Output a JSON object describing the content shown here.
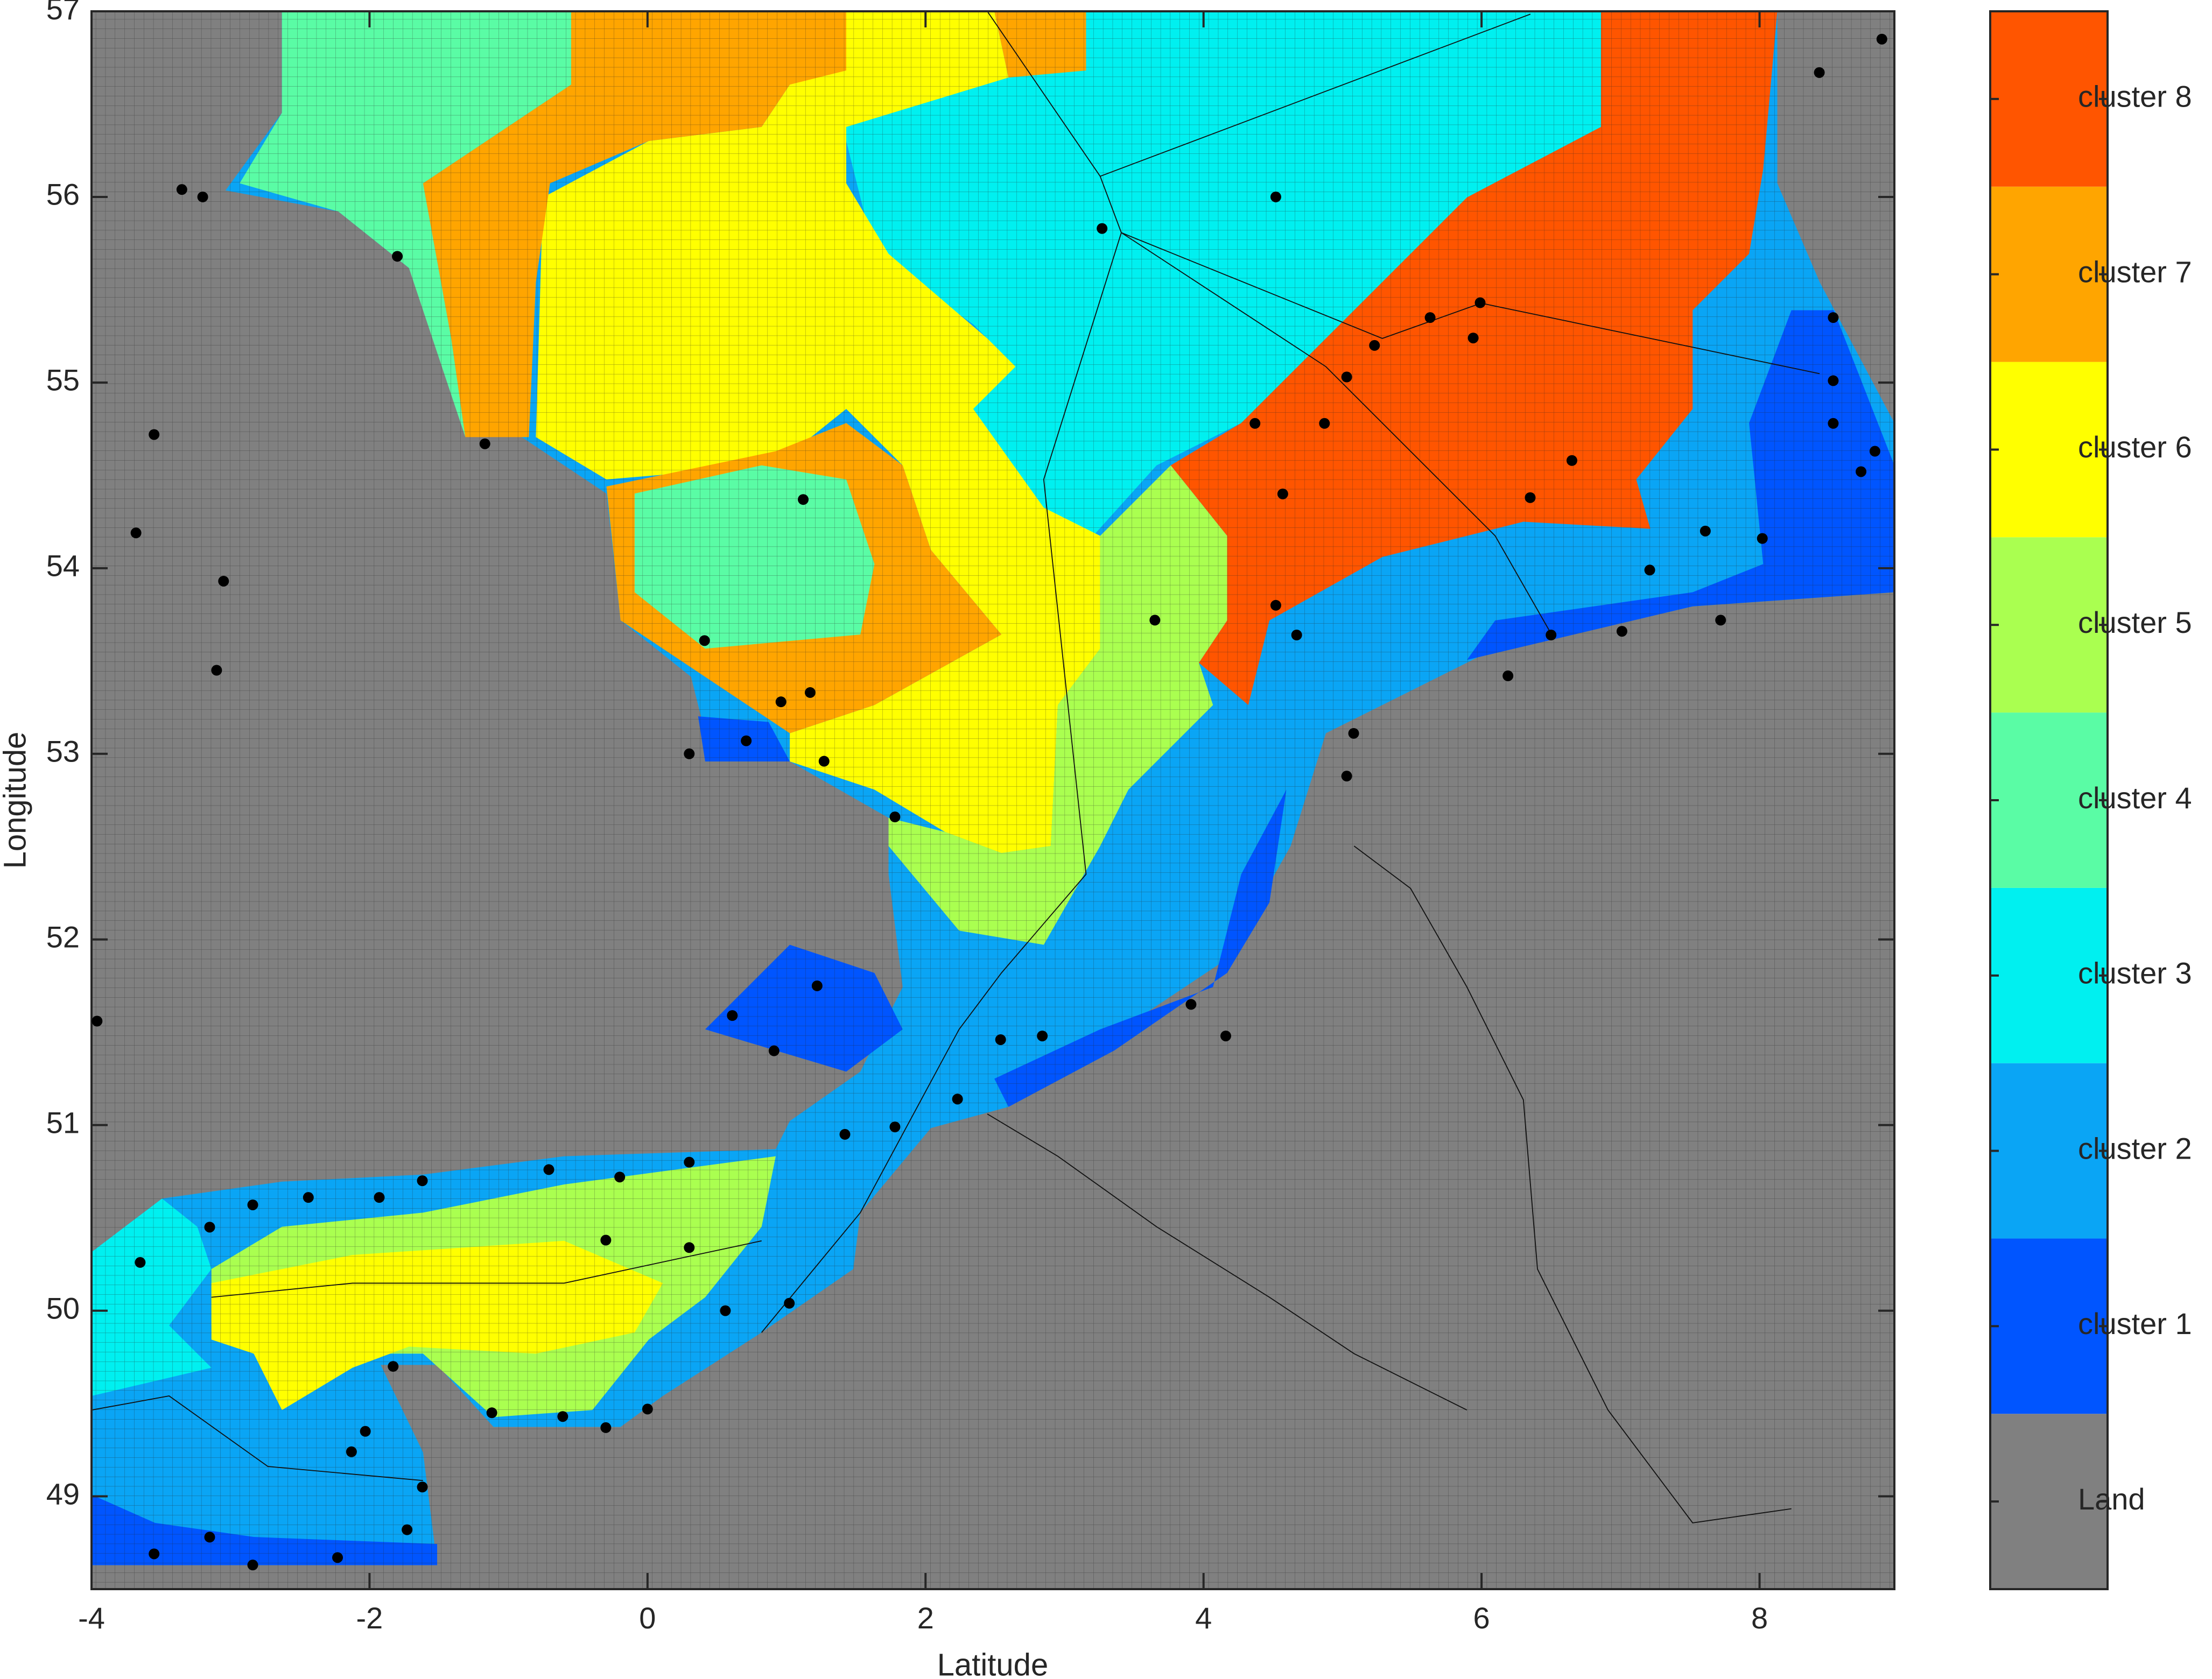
{
  "chart_data": {
    "type": "map",
    "x_label": "Latitude",
    "y_label": "Longitude",
    "xlim": [
      -4,
      8.97
    ],
    "ylim": [
      48.5,
      57
    ],
    "xticks": [
      -4,
      -2,
      0,
      2,
      4,
      6,
      8
    ],
    "yticks": [
      49,
      50,
      51,
      52,
      53,
      54,
      55,
      56,
      57
    ],
    "clusters": [
      {
        "name": "Land",
        "color": "#808080"
      },
      {
        "name": "cluster 1",
        "color": "#0055ff"
      },
      {
        "name": "cluster 2",
        "color": "#0aa5f5"
      },
      {
        "name": "cluster 3",
        "color": "#00f0f0"
      },
      {
        "name": "cluster 4",
        "color": "#5afca5"
      },
      {
        "name": "cluster 5",
        "color": "#aaff50"
      },
      {
        "name": "cluster 6",
        "color": "#ffff00"
      },
      {
        "name": "cluster 7",
        "color": "#ffa500"
      },
      {
        "name": "cluster 8",
        "color": "#ff5500"
      }
    ],
    "point_color": "#000000",
    "x": [
      3.27,
      4.52,
      5.99,
      5.94,
      5.63,
      5.23,
      5.03,
      4.87,
      4.57,
      4.52,
      6.35,
      6.65,
      7.61,
      8.02,
      7.21,
      8.53,
      8.73,
      7.72,
      7.01,
      6.5,
      6.19,
      5.08,
      5.03,
      3.91,
      4.16,
      2.84,
      2.54,
      2.23,
      1.78,
      1.42,
      1.22,
      0.91,
      0.61,
      0.3,
      -0.2,
      -0.71,
      -1.62,
      -1.93,
      -2.44,
      -2.84,
      -3.15,
      -3.65,
      -0.3,
      0.3,
      0.56,
      1.02,
      0.0,
      -0.3,
      -0.61,
      -1.12,
      -1.83,
      -2.03,
      -2.13,
      -1.62,
      -1.73,
      -2.23,
      -2.84,
      -3.15,
      -3.55,
      -3.2,
      -3.35,
      -1.8,
      -1.17,
      1.12,
      0.41,
      0.96,
      1.17,
      0.71,
      0.3,
      1.27,
      1.78,
      -3.68,
      -3.55,
      -3.05,
      -3.1,
      8.43,
      8.88,
      8.53,
      8.53,
      8.83,
      -3.96,
      3.65,
      4.37,
      4.67
    ],
    "values": [
      55.83,
      56.0,
      55.43,
      55.24,
      55.35,
      55.2,
      55.03,
      54.78,
      54.4,
      53.8,
      54.38,
      54.58,
      54.2,
      54.16,
      53.99,
      55.35,
      54.52,
      53.72,
      53.66,
      53.64,
      53.42,
      53.11,
      52.88,
      51.65,
      51.48,
      51.48,
      51.46,
      51.14,
      50.99,
      50.95,
      51.75,
      51.4,
      51.59,
      50.8,
      50.72,
      50.76,
      50.7,
      50.61,
      50.61,
      50.57,
      50.45,
      50.26,
      50.38,
      50.34,
      50.0,
      50.04,
      49.47,
      49.37,
      49.43,
      49.45,
      49.7,
      49.35,
      49.24,
      49.05,
      48.82,
      48.67,
      48.63,
      48.78,
      48.69,
      56.0,
      56.04,
      55.68,
      54.67,
      54.37,
      53.61,
      53.28,
      53.33,
      53.07,
      53.0,
      52.96,
      52.66,
      54.19,
      54.72,
      53.93,
      53.45,
      56.67,
      56.85,
      55.01,
      54.78,
      54.63,
      51.56,
      53.72,
      54.78,
      53.64
    ]
  }
}
